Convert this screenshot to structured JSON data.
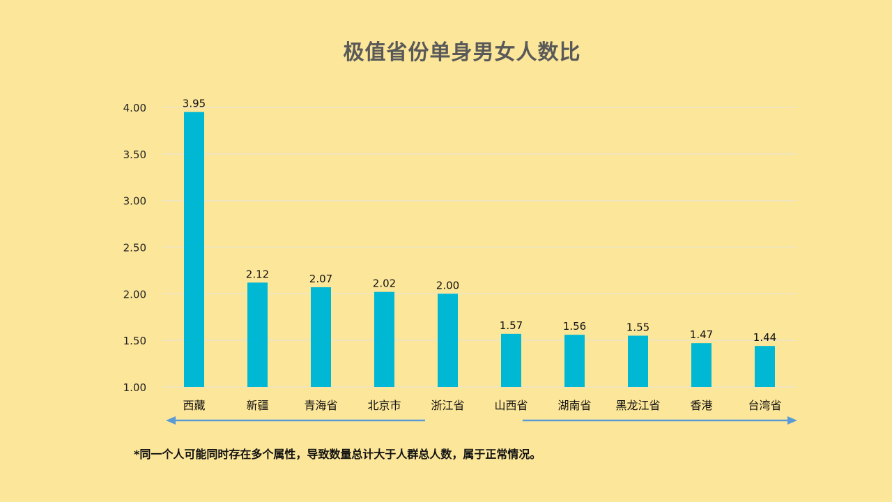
{
  "colors": {
    "background": "#FCE699",
    "bar": "#00B8D4",
    "grid": "#EDE4C6",
    "arrow": "#5B9BD5"
  },
  "chart_data": {
    "type": "bar",
    "title": "极值省份单身男女人数比",
    "categories": [
      "西藏",
      "新疆",
      "青海省",
      "北京市",
      "浙江省",
      "山西省",
      "湖南省",
      "黑龙江省",
      "香港",
      "台湾省"
    ],
    "values": [
      3.95,
      2.12,
      2.07,
      2.02,
      2.0,
      1.57,
      1.56,
      1.55,
      1.47,
      1.44
    ],
    "value_labels": [
      "3.95",
      "2.12",
      "2.07",
      "2.02",
      "2.00",
      "1.57",
      "1.56",
      "1.55",
      "1.47",
      "1.44"
    ],
    "ylim": [
      1.0,
      4.0
    ],
    "yticks": [
      "1.00",
      "1.50",
      "2.00",
      "2.50",
      "3.00",
      "3.50",
      "4.00"
    ],
    "ytick_values": [
      1.0,
      1.5,
      2.0,
      2.5,
      3.0,
      3.5,
      4.0
    ],
    "grid": true,
    "xlabel": "",
    "ylabel": ""
  },
  "annotations": {
    "arrow_left_direction": "left",
    "arrow_right_direction": "right"
  },
  "footnote": "*同一个人可能同时存在多个属性，导致数量总计大于人群总人数，属于正常情况。"
}
